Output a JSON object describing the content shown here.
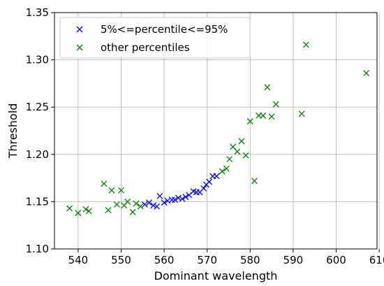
{
  "chart_data": {
    "type": "scatter",
    "title": "",
    "xlabel": "Dominant wavelength",
    "ylabel": "Threshold",
    "xlim": [
      534.5,
      609.5
    ],
    "ylim": [
      1.1,
      1.35
    ],
    "xticks": [
      540,
      550,
      560,
      570,
      580,
      590,
      600,
      610
    ],
    "yticks": [
      1.1,
      1.15,
      1.2,
      1.25,
      1.3,
      1.35
    ],
    "xtick_labels": [
      "540",
      "550",
      "560",
      "570",
      "580",
      "590",
      "600",
      "610"
    ],
    "ytick_labels": [
      "1.10",
      "1.15",
      "1.20",
      "1.25",
      "1.30",
      "1.35"
    ],
    "grid": true,
    "legend_position": "top-left",
    "marker": "x",
    "series": [
      {
        "name": "5%<=percentile<=95%",
        "color": "#0000ff",
        "points": [
          [
            555.5,
            1.147
          ],
          [
            556.5,
            1.149
          ],
          [
            557.5,
            1.146
          ],
          [
            558.3,
            1.145
          ],
          [
            559.0,
            1.156
          ],
          [
            560.0,
            1.149
          ],
          [
            560.8,
            1.151
          ],
          [
            561.8,
            1.152
          ],
          [
            562.5,
            1.152
          ],
          [
            563.3,
            1.154
          ],
          [
            564.2,
            1.153
          ],
          [
            565.0,
            1.155
          ],
          [
            565.8,
            1.157
          ],
          [
            566.8,
            1.161
          ],
          [
            567.5,
            1.16
          ],
          [
            568.3,
            1.16
          ],
          [
            569.2,
            1.164
          ],
          [
            569.8,
            1.168
          ],
          [
            570.5,
            1.171
          ],
          [
            571.3,
            1.177
          ],
          [
            572.2,
            1.177
          ]
        ]
      },
      {
        "name": "other percentiles",
        "color": "#008000",
        "points": [
          [
            538.0,
            1.143
          ],
          [
            540.0,
            1.138
          ],
          [
            541.8,
            1.142
          ],
          [
            542.5,
            1.14
          ],
          [
            546.0,
            1.169
          ],
          [
            547.0,
            1.141
          ],
          [
            547.8,
            1.162
          ],
          [
            549.0,
            1.147
          ],
          [
            550.0,
            1.162
          ],
          [
            550.7,
            1.146
          ],
          [
            551.5,
            1.15
          ],
          [
            552.7,
            1.139
          ],
          [
            553.5,
            1.148
          ],
          [
            554.5,
            1.145
          ],
          [
            573.5,
            1.182
          ],
          [
            574.5,
            1.185
          ],
          [
            575.2,
            1.195
          ],
          [
            576.0,
            1.208
          ],
          [
            577.0,
            1.203
          ],
          [
            578.0,
            1.214
          ],
          [
            579.0,
            1.199
          ],
          [
            580.0,
            1.235
          ],
          [
            581.0,
            1.172
          ],
          [
            582.0,
            1.241
          ],
          [
            583.0,
            1.241
          ],
          [
            584.0,
            1.271
          ],
          [
            585.0,
            1.24
          ],
          [
            586.0,
            1.253
          ],
          [
            592.0,
            1.243
          ],
          [
            593.0,
            1.316
          ],
          [
            607.0,
            1.286
          ]
        ]
      }
    ]
  }
}
